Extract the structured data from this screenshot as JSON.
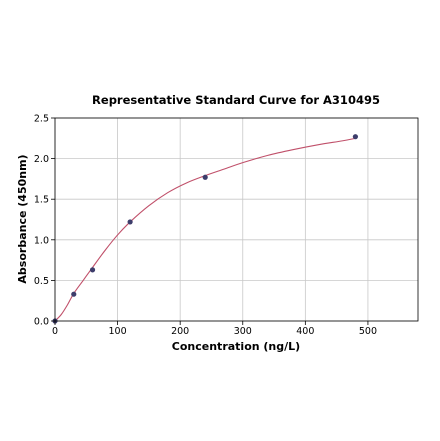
{
  "chart_data": {
    "type": "scatter",
    "title": "Representative Standard Curve for A310495",
    "xlabel": "Concentration (ng/L)",
    "ylabel": "Absorbance (450nm)",
    "xlim": [
      0,
      580
    ],
    "ylim": [
      0,
      2.5
    ],
    "x_ticks": [
      0,
      100,
      200,
      300,
      400,
      500
    ],
    "y_ticks": [
      0.0,
      0.5,
      1.0,
      1.5,
      2.0,
      2.5
    ],
    "x_tick_labels": [
      "0",
      "100",
      "200",
      "300",
      "400",
      "500"
    ],
    "y_tick_labels": [
      "0.0",
      "0.5",
      "1.0",
      "1.5",
      "2.0",
      "2.5"
    ],
    "grid": true,
    "point_color": "#3d3d6b",
    "curve_color": "#c0506a",
    "series": [
      {
        "x": [
          0,
          30,
          60,
          120,
          240,
          480
        ],
        "y": [
          0.0,
          0.33,
          0.63,
          1.22,
          1.77,
          2.27
        ]
      }
    ],
    "fit_curve": {
      "x": [
        0,
        10,
        20,
        30,
        45,
        60,
        80,
        100,
        120,
        150,
        180,
        210,
        240,
        270,
        300,
        340,
        380,
        420,
        460,
        480
      ],
      "y": [
        0.0,
        0.08,
        0.2,
        0.34,
        0.5,
        0.66,
        0.87,
        1.06,
        1.22,
        1.42,
        1.58,
        1.7,
        1.79,
        1.87,
        1.95,
        2.04,
        2.11,
        2.17,
        2.22,
        2.25
      ]
    }
  }
}
